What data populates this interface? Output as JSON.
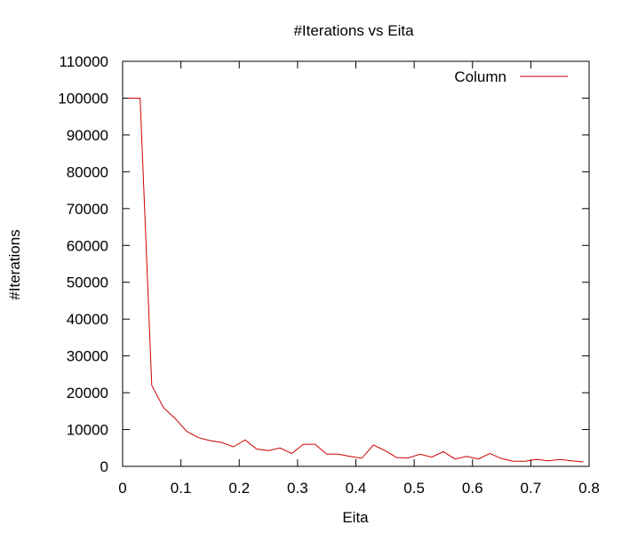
{
  "chart_data": {
    "type": "line",
    "title": "#Iterations vs Eita",
    "xlabel": "Eita",
    "ylabel": "#Iterations",
    "xlim": [
      0,
      0.8
    ],
    "ylim": [
      0,
      110000
    ],
    "xticks": [
      0,
      0.1,
      0.2,
      0.3,
      0.4,
      0.5,
      0.6,
      0.7,
      0.8
    ],
    "xtick_labels": [
      "0",
      "0.1",
      "0.2",
      "0.3",
      "0.4",
      "0.5",
      "0.6",
      "0.7",
      "0.8"
    ],
    "yticks": [
      0,
      10000,
      20000,
      30000,
      40000,
      50000,
      60000,
      70000,
      80000,
      90000,
      100000,
      110000
    ],
    "ytick_labels": [
      "0",
      "10000",
      "20000",
      "30000",
      "40000",
      "50000",
      "60000",
      "70000",
      "80000",
      "90000",
      "100000",
      "110000"
    ],
    "grid": false,
    "legend_position": "top-right",
    "series": [
      {
        "name": "Column",
        "color": "#cc0000",
        "x": [
          0.01,
          0.03,
          0.05,
          0.07,
          0.09,
          0.11,
          0.13,
          0.15,
          0.17,
          0.19,
          0.21,
          0.23,
          0.25,
          0.27,
          0.29,
          0.31,
          0.33,
          0.35,
          0.37,
          0.39,
          0.41,
          0.43,
          0.45,
          0.47,
          0.49,
          0.51,
          0.53,
          0.55,
          0.57,
          0.59,
          0.61,
          0.63,
          0.65,
          0.67,
          0.69,
          0.71,
          0.73,
          0.75,
          0.77,
          0.79
        ],
        "y": [
          100000,
          100000,
          22000,
          16000,
          13000,
          9500,
          7800,
          7000,
          6500,
          5300,
          7200,
          4700,
          4300,
          5000,
          3500,
          6000,
          6000,
          3300,
          3300,
          2700,
          2200,
          5800,
          4300,
          2400,
          2300,
          3300,
          2500,
          4000,
          2000,
          2700,
          2000,
          3500,
          2100,
          1400,
          1400,
          1900,
          1500,
          1900,
          1500,
          1200
        ]
      }
    ]
  }
}
